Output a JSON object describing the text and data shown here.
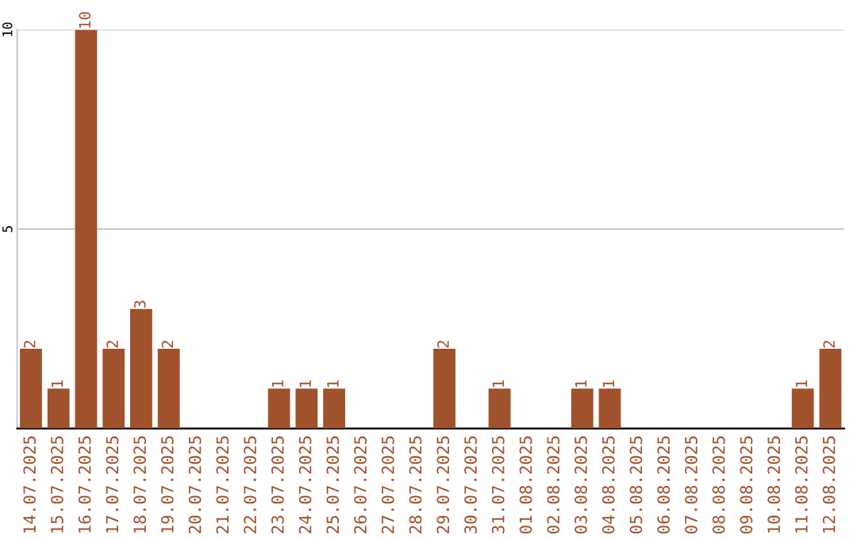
{
  "chart_data": {
    "type": "bar",
    "categories": [
      "14.07.2025",
      "15.07.2025",
      "16.07.2025",
      "17.07.2025",
      "18.07.2025",
      "19.07.2025",
      "20.07.2025",
      "21.07.2025",
      "22.07.2025",
      "23.07.2025",
      "24.07.2025",
      "25.07.2025",
      "26.07.2025",
      "27.07.2025",
      "28.07.2025",
      "29.07.2025",
      "30.07.2025",
      "31.07.2025",
      "01.08.2025",
      "02.08.2025",
      "03.08.2025",
      "04.08.2025",
      "05.08.2025",
      "06.08.2025",
      "07.08.2025",
      "08.08.2025",
      "09.08.2025",
      "10.08.2025",
      "11.08.2025",
      "12.08.2025"
    ],
    "values": [
      2,
      1,
      10,
      2,
      3,
      2,
      0,
      0,
      0,
      1,
      1,
      1,
      0,
      0,
      0,
      2,
      0,
      1,
      0,
      0,
      1,
      1,
      0,
      0,
      0,
      0,
      0,
      0,
      1,
      2
    ],
    "value_labels": [
      "2",
      "1",
      "10",
      "2",
      "3",
      "2",
      null,
      null,
      null,
      "1",
      "1",
      "1",
      null,
      null,
      null,
      "2",
      null,
      "1",
      null,
      null,
      "1",
      "1",
      null,
      null,
      null,
      null,
      null,
      null,
      "1",
      "2"
    ],
    "color": "#a0522d",
    "ylim": [
      0,
      10
    ],
    "yticks": [
      {
        "value": 0,
        "label": null
      },
      5,
      10
    ],
    "grid": "y"
  }
}
